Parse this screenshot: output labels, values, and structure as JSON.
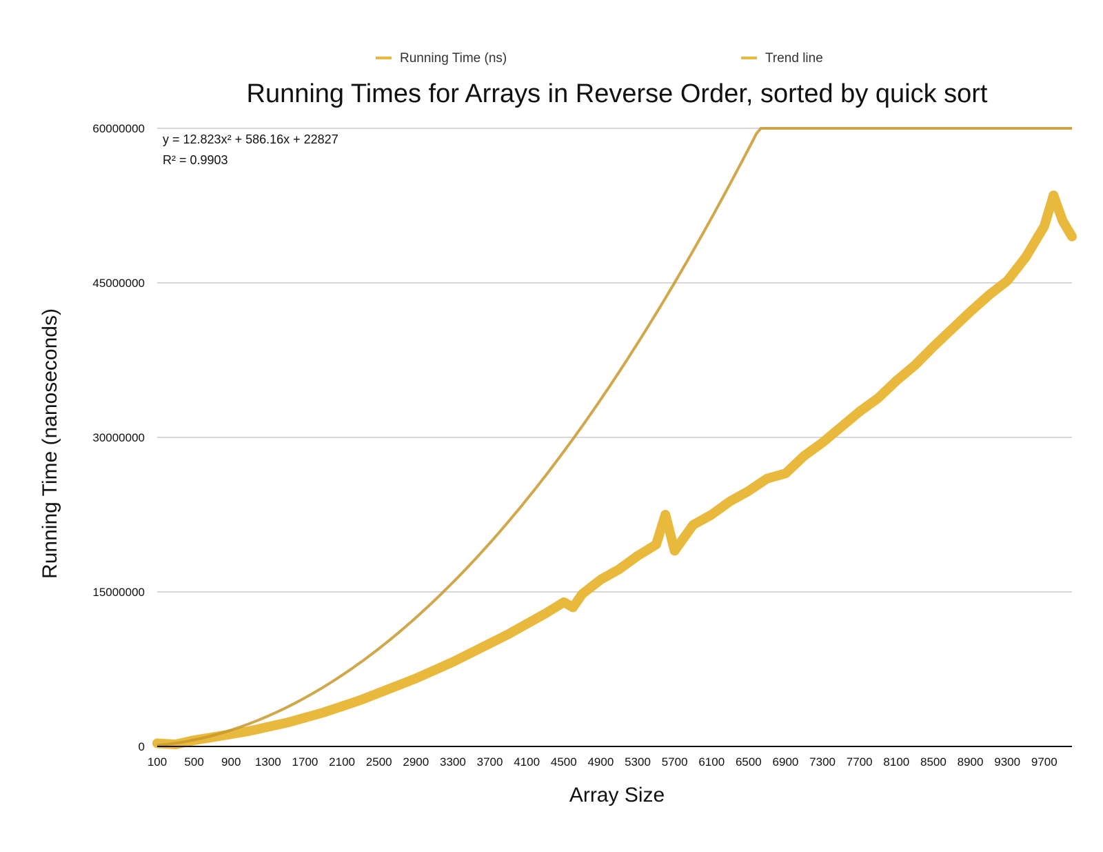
{
  "chart_data": {
    "type": "line",
    "title": "Running Times for Arrays in Reverse Order, sorted by quick sort",
    "xlabel": "Array Size",
    "ylabel": "Running Time (nanoseconds)",
    "xlim": [
      100,
      10000
    ],
    "ylim": [
      0,
      60000000
    ],
    "y_ticks": [
      0,
      15000000,
      30000000,
      45000000,
      60000000
    ],
    "y_tick_labels": [
      "0",
      "15000000",
      "30000000",
      "45000000",
      "60000000"
    ],
    "x_tick_labels": [
      "100",
      "500",
      "900",
      "1300",
      "1700",
      "2100",
      "2500",
      "2900",
      "3300",
      "3700",
      "4100",
      "4500",
      "4900",
      "5300",
      "5700",
      "6100",
      "6500",
      "6900",
      "7300",
      "7700",
      "8100",
      "8500",
      "8900",
      "9300",
      "9700"
    ],
    "grid": true,
    "legend_position": "top",
    "legend": [
      {
        "label": "Running Time (ns)",
        "color": "#E8B93C"
      },
      {
        "label": "Trend line",
        "color": "#E8B93C"
      }
    ],
    "trendline": {
      "equation": "y = 12.823x² + 586.16x + 22827",
      "r_squared": "R² = 0.9903",
      "a": 12.823,
      "b": 586.16,
      "c": 22827
    },
    "series": [
      {
        "name": "Running Time (ns)",
        "color": "#E8B93C",
        "x": [
          100,
          300,
          500,
          700,
          900,
          1100,
          1300,
          1500,
          1700,
          1900,
          2100,
          2300,
          2500,
          2700,
          2900,
          3100,
          3300,
          3500,
          3700,
          3900,
          4100,
          4300,
          4500,
          4600,
          4700,
          4900,
          5100,
          5300,
          5500,
          5600,
          5700,
          5900,
          6100,
          6300,
          6500,
          6700,
          6900,
          7100,
          7300,
          7500,
          7700,
          7900,
          8100,
          8300,
          8500,
          8700,
          8900,
          9100,
          9300,
          9500,
          9700,
          9800,
          9900,
          10000
        ],
        "y": [
          300000,
          200000,
          600000,
          900000,
          1200000,
          1500000,
          1900000,
          2300000,
          2800000,
          3300000,
          3900000,
          4500000,
          5200000,
          5900000,
          6600000,
          7400000,
          8200000,
          9100000,
          10000000,
          10900000,
          11900000,
          12900000,
          14000000,
          13500000,
          14800000,
          16200000,
          17200000,
          18500000,
          19600000,
          22500000,
          19000000,
          21500000,
          22500000,
          23800000,
          24800000,
          26000000,
          26500000,
          28200000,
          29500000,
          31000000,
          32500000,
          33800000,
          35500000,
          37000000,
          38800000,
          40500000,
          42200000,
          43800000,
          45200000,
          47500000,
          50500000,
          53500000,
          51000000,
          49500000
        ]
      }
    ]
  }
}
